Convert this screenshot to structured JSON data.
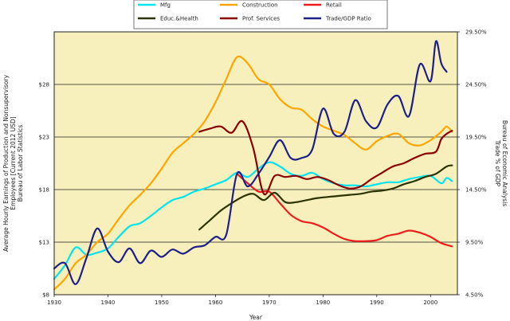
{
  "chart_data": {
    "type": "line",
    "xlabel": "Year",
    "ylabel_left": [
      "Average Hourly Earnings of Production and Nonsupervisory",
      "Employees [Current 2012 USD]",
      "Bureau of Labor Statistics"
    ],
    "ylabel_right": [
      "Trade % of GDP",
      "Bureau of Economic Analysis"
    ],
    "xlim": [
      1930,
      2005
    ],
    "x_ticks": [
      {
        "value": 1930,
        "label": "1930"
      },
      {
        "value": 1940,
        "label": "1940"
      },
      {
        "value": 1950,
        "label": "1950"
      },
      {
        "value": 1960,
        "label": "1960"
      },
      {
        "value": 1970,
        "label": "1970"
      },
      {
        "value": 1980,
        "label": "1980"
      },
      {
        "value": 1990,
        "label": "1990"
      },
      {
        "value": 2000,
        "label": "2000"
      }
    ],
    "ylim_left": [
      8,
      33
    ],
    "y_ticks_left": [
      {
        "value": 8,
        "label": "$8"
      },
      {
        "value": 13,
        "label": "$13"
      },
      {
        "value": 18,
        "label": "$18"
      },
      {
        "value": 23,
        "label": "$23"
      },
      {
        "value": 28,
        "label": "$28"
      }
    ],
    "ylim_right": [
      4.5,
      29.5
    ],
    "y_ticks_right": [
      {
        "value": 4.5,
        "label": "4.50%"
      },
      {
        "value": 9.5,
        "label": "9.50%"
      },
      {
        "value": 14.5,
        "label": "14.50%"
      },
      {
        "value": 19.5,
        "label": "19.50%"
      },
      {
        "value": 24.5,
        "label": "24.50%"
      },
      {
        "value": 29.5,
        "label": "29.50%"
      }
    ],
    "grid": "horizontal",
    "plot_background": "#f7f0bc",
    "legend": {
      "position": "top",
      "entries": [
        {
          "label": "Mfg",
          "color": "#00e5ee"
        },
        {
          "label": "Construction",
          "color": "#ffa500"
        },
        {
          "label": "Retail",
          "color": "#ee1c1c"
        },
        {
          "label": "Educ.&Health",
          "color": "#2d3300"
        },
        {
          "label": "Prof. Services",
          "color": "#8b0000"
        },
        {
          "label": "Trade/GDP Ratio",
          "color": "#1f1f8a"
        }
      ]
    },
    "series": [
      {
        "name": "Mfg",
        "color": "#00e5ee",
        "axis": "left",
        "x": [
          1930,
          1932,
          1934,
          1936,
          1938,
          1940,
          1942,
          1944,
          1946,
          1948,
          1950,
          1952,
          1954,
          1956,
          1958,
          1960,
          1962,
          1964,
          1966,
          1968,
          1970,
          1972,
          1974,
          1976,
          1978,
          1980,
          1982,
          1984,
          1986,
          1988,
          1990,
          1992,
          1994,
          1996,
          1998,
          2000,
          2002,
          2003,
          2004
        ],
        "y": [
          9.5,
          10.8,
          12.5,
          11.8,
          12.0,
          12.4,
          13.5,
          14.5,
          14.8,
          15.5,
          16.3,
          17.0,
          17.3,
          17.8,
          18.1,
          18.5,
          18.9,
          19.6,
          19.2,
          20.0,
          20.6,
          20.2,
          19.5,
          19.3,
          19.6,
          19.0,
          18.6,
          18.4,
          18.4,
          18.3,
          18.5,
          18.7,
          18.7,
          19.0,
          19.2,
          19.3,
          18.6,
          19.1,
          18.8
        ]
      },
      {
        "name": "Construction",
        "color": "#ffa500",
        "axis": "left",
        "x": [
          1930,
          1932,
          1934,
          1936,
          1938,
          1940,
          1942,
          1944,
          1946,
          1948,
          1950,
          1952,
          1954,
          1956,
          1958,
          1960,
          1962,
          1964,
          1966,
          1968,
          1970,
          1972,
          1974,
          1976,
          1978,
          1980,
          1982,
          1984,
          1986,
          1988,
          1990,
          1992,
          1994,
          1996,
          1998,
          2000,
          2002,
          2003,
          2004
        ],
        "y": [
          8.5,
          9.5,
          11.0,
          11.8,
          13.0,
          13.8,
          15.2,
          16.5,
          17.5,
          18.6,
          20.0,
          21.5,
          22.4,
          23.3,
          24.5,
          26.3,
          28.5,
          30.6,
          30.0,
          28.5,
          28.0,
          26.6,
          25.8,
          25.6,
          24.7,
          24.0,
          23.6,
          23.2,
          22.4,
          21.8,
          22.6,
          23.1,
          23.3,
          22.4,
          22.2,
          22.7,
          23.5,
          24.0,
          23.5
        ]
      },
      {
        "name": "Retail",
        "color": "#ee1c1c",
        "axis": "left",
        "x": [
          1964,
          1966,
          1968,
          1970,
          1972,
          1974,
          1976,
          1978,
          1980,
          1982,
          1984,
          1986,
          1988,
          1990,
          1992,
          1994,
          1996,
          1998,
          2000,
          2002,
          2004
        ],
        "y": [
          19.5,
          18.6,
          17.8,
          17.8,
          16.7,
          15.6,
          15.0,
          14.8,
          14.4,
          13.8,
          13.3,
          13.1,
          13.1,
          13.2,
          13.6,
          13.8,
          14.1,
          13.9,
          13.5,
          12.9,
          12.6
        ]
      },
      {
        "name": "Educ.&Health",
        "color": "#2d3300",
        "axis": "left",
        "x": [
          1957,
          1959,
          1961,
          1963,
          1965,
          1967,
          1969,
          1971,
          1973,
          1975,
          1977,
          1979,
          1981,
          1983,
          1985,
          1987,
          1989,
          1991,
          1993,
          1995,
          1997,
          1999,
          2001,
          2003,
          2004
        ],
        "y": [
          14.2,
          15.1,
          16.0,
          16.7,
          17.3,
          17.6,
          17.0,
          17.7,
          16.8,
          16.8,
          17.0,
          17.2,
          17.3,
          17.4,
          17.5,
          17.6,
          17.8,
          17.9,
          18.1,
          18.5,
          18.8,
          19.2,
          19.5,
          20.2,
          20.3
        ]
      },
      {
        "name": "Prof. Services",
        "color": "#8b0000",
        "axis": "left",
        "x": [
          1957,
          1959,
          1961,
          1963,
          1965,
          1967,
          1969,
          1971,
          1973,
          1975,
          1977,
          1979,
          1981,
          1983,
          1985,
          1987,
          1989,
          1991,
          1993,
          1995,
          1997,
          1999,
          2001,
          2002,
          2003,
          2004
        ],
        "y": [
          23.5,
          23.8,
          24.0,
          23.4,
          24.5,
          22.0,
          17.6,
          19.3,
          19.2,
          19.3,
          19.0,
          19.2,
          18.9,
          18.4,
          18.1,
          18.3,
          19.0,
          19.6,
          20.2,
          20.5,
          21.0,
          21.4,
          21.6,
          22.8,
          23.3,
          23.6
        ]
      },
      {
        "name": "Trade/GDP Ratio",
        "color": "#1f1f8a",
        "axis": "right",
        "x": [
          1930,
          1932,
          1934,
          1936,
          1938,
          1940,
          1942,
          1944,
          1946,
          1948,
          1950,
          1952,
          1954,
          1956,
          1958,
          1960,
          1962,
          1964,
          1966,
          1968,
          1970,
          1972,
          1974,
          1976,
          1978,
          1980,
          1982,
          1984,
          1986,
          1988,
          1990,
          1992,
          1994,
          1996,
          1998,
          2000,
          2001,
          2002,
          2003
        ],
        "y": [
          7.0,
          7.5,
          5.5,
          8.0,
          10.8,
          8.6,
          7.6,
          8.9,
          7.5,
          8.7,
          8.1,
          8.8,
          8.4,
          9.0,
          9.2,
          10.0,
          10.2,
          16.0,
          14.8,
          16.0,
          17.6,
          19.2,
          17.5,
          17.5,
          18.3,
          22.2,
          19.8,
          20.0,
          23.0,
          21.0,
          20.4,
          22.6,
          23.4,
          21.5,
          26.4,
          24.8,
          28.6,
          26.5,
          25.7
        ]
      }
    ]
  }
}
